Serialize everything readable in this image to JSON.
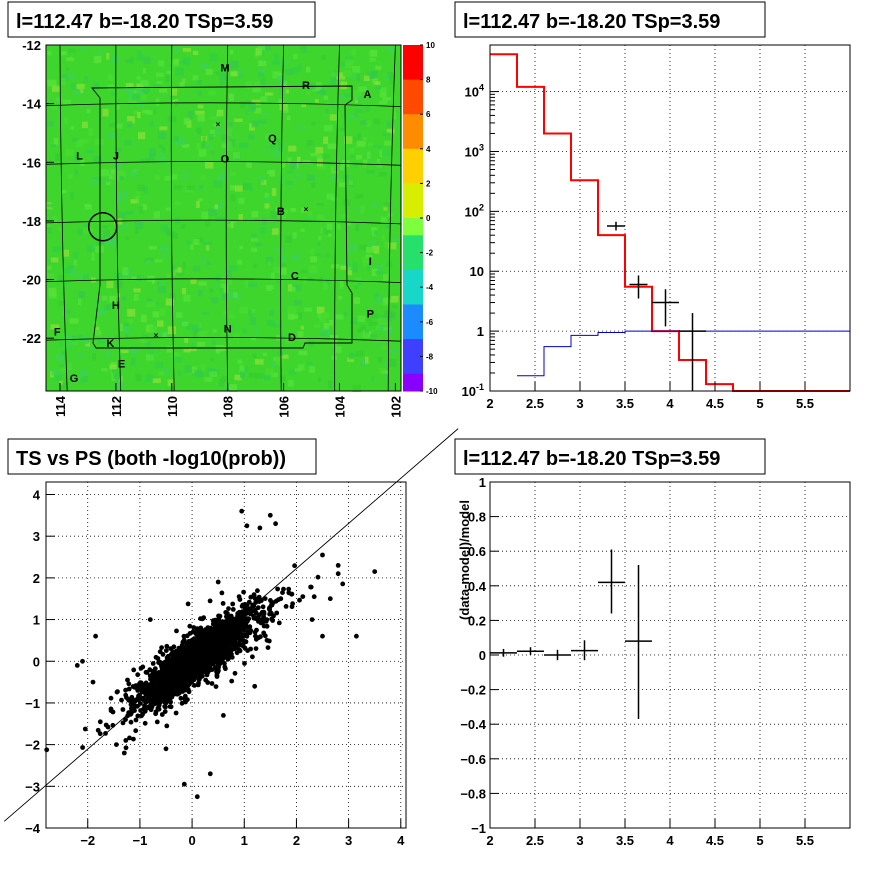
{
  "chart_data": [
    {
      "id": "skymap",
      "type": "heatmap",
      "title": "l=112.47 b=-18.20 TSp=3.59",
      "xlim": [
        114.5,
        101.8
      ],
      "ylim": [
        -23.8,
        -12
      ],
      "x_ticks": [
        114,
        112,
        110,
        108,
        106,
        104,
        102
      ],
      "y_ticks": [
        -12,
        -14,
        -16,
        -18,
        -20,
        -22
      ],
      "colorbar": {
        "min": -10,
        "max": 10,
        "ticks": [
          10,
          8,
          6,
          4,
          2,
          0,
          -2,
          -4,
          -6,
          -8,
          -10
        ]
      },
      "field_color": "#3ed62c",
      "source_circle": {
        "l": 112.47,
        "b": -18.2
      },
      "labels": [
        {
          "text": "M",
          "l": 108.1,
          "b": -12.9
        },
        {
          "text": "R",
          "l": 105.2,
          "b": -13.5
        },
        {
          "text": "A",
          "l": 103.0,
          "b": -13.8
        },
        {
          "text": "Q",
          "l": 106.4,
          "b": -15.3
        },
        {
          "text": "L",
          "l": 113.3,
          "b": -15.9
        },
        {
          "text": "J",
          "l": 112.0,
          "b": -15.9
        },
        {
          "text": "O",
          "l": 108.1,
          "b": -16.0
        },
        {
          "text": "B",
          "l": 106.1,
          "b": -17.8
        },
        {
          "text": "I",
          "l": 102.9,
          "b": -19.5
        },
        {
          "text": "C",
          "l": 105.6,
          "b": -20.0
        },
        {
          "text": "H",
          "l": 112.0,
          "b": -21.0
        },
        {
          "text": "P",
          "l": 102.9,
          "b": -21.3
        },
        {
          "text": "N",
          "l": 108.0,
          "b": -21.8
        },
        {
          "text": "F",
          "l": 114.1,
          "b": -21.9
        },
        {
          "text": "D",
          "l": 105.7,
          "b": -22.1
        },
        {
          "text": "K",
          "l": 112.2,
          "b": -22.3
        },
        {
          "text": "E",
          "l": 111.8,
          "b": -23.0
        },
        {
          "text": "G",
          "l": 113.5,
          "b": -23.5
        }
      ]
    },
    {
      "id": "spectrum",
      "type": "line",
      "title": "l=112.47 b=-18.20 TSp=3.59",
      "xlim": [
        2,
        6
      ],
      "ylim": [
        0.1,
        60000
      ],
      "yscale": "log",
      "x_ticks": [
        2,
        2.5,
        3,
        3.5,
        4,
        4.5,
        5,
        5.5
      ],
      "y_ticks": [
        0.1,
        1,
        10,
        100,
        1000,
        10000
      ],
      "y_tick_labels": [
        "10^-1",
        "1",
        "10",
        "10^2",
        "10^3",
        "10^4"
      ],
      "series": [
        {
          "color": "#ff0000",
          "edges": [
            2,
            2.3,
            2.6,
            2.9,
            3.2,
            3.5,
            3.8,
            4.1,
            4.4,
            4.7,
            6
          ],
          "values": [
            42000,
            12000,
            2000,
            330,
            40,
            5.5,
            1,
            0.33,
            0.13,
            0.1
          ]
        },
        {
          "color": "#0000cc",
          "edges": [
            2.3,
            2.6,
            2.9,
            3.2,
            3.5,
            3.8,
            4.1,
            6
          ],
          "values": [
            0.18,
            0.55,
            0.85,
            0.95,
            1,
            1,
            1
          ]
        }
      ],
      "points": [
        {
          "x": 3.4,
          "y": 57,
          "xerr": 0.1,
          "ylo": 48,
          "yhi": 67
        },
        {
          "x": 3.65,
          "y": 6,
          "xerr": 0.1,
          "ylo": 3.5,
          "yhi": 8.5
        },
        {
          "x": 3.95,
          "y": 3,
          "xerr": 0.15,
          "ylo": 1.2,
          "yhi": 5
        },
        {
          "x": 4.25,
          "y": 1,
          "xerr": 0.15,
          "ylo": 0.1,
          "yhi": 2
        }
      ]
    },
    {
      "id": "ts_vs_ps",
      "type": "scatter",
      "title": "TS vs PS (both -log10(prob))",
      "xlim": [
        -2.8,
        4.1
      ],
      "ylim": [
        -4,
        4.3
      ],
      "x_ticks": [
        -2,
        -1,
        0,
        1,
        2,
        3,
        4
      ],
      "y_ticks": [
        -4,
        -3,
        -2,
        -1,
        0,
        1,
        2,
        3,
        4
      ],
      "diagonal": "y=x",
      "points": [
        [
          -2.1,
          0
        ],
        [
          -2.2,
          -0.1
        ],
        [
          -1.85,
          0.6
        ],
        [
          -1.9,
          -0.5
        ],
        [
          -1.45,
          -2.0
        ],
        [
          -1.3,
          -2.2
        ],
        [
          3.5,
          2.15
        ],
        [
          3.15,
          0.6
        ],
        [
          2.8,
          2.1
        ],
        [
          2.8,
          2.3
        ],
        [
          2.5,
          0.6
        ],
        [
          2.3,
          1.0
        ],
        [
          2.5,
          2.55
        ],
        [
          1.5,
          3.5
        ],
        [
          0.95,
          3.6
        ],
        [
          1.3,
          3.2
        ],
        [
          1.6,
          3.3
        ],
        [
          1.05,
          3.25
        ],
        [
          2.65,
          1.5
        ],
        [
          0.1,
          -3.25
        ],
        [
          -0.15,
          -2.95
        ],
        [
          0.35,
          -2.7
        ],
        [
          -0.5,
          -2.1
        ],
        [
          0.6,
          -1.3
        ],
        [
          0.5,
          1.9
        ],
        [
          1.7,
          1.5
        ],
        [
          -0.8,
          1.0
        ],
        [
          1.2,
          -0.6
        ]
      ],
      "cloud": {
        "center": [
          0.05,
          0.05
        ],
        "n": 3200
      }
    },
    {
      "id": "residuals",
      "type": "scatter",
      "title": "l=112.47 b=-18.20 TSp=3.59",
      "ylabel": "(data-model)/model",
      "xlim": [
        2,
        6
      ],
      "ylim": [
        -1,
        1
      ],
      "x_ticks": [
        2,
        2.5,
        3,
        3.5,
        4,
        4.5,
        5,
        5.5
      ],
      "y_ticks": [
        -1,
        -0.8,
        -0.6,
        -0.4,
        -0.2,
        0,
        0.2,
        0.4,
        0.6,
        0.8,
        1
      ],
      "points": [
        {
          "x": 2.15,
          "y": 0.012,
          "xerr": 0.15,
          "ylo": -0.01,
          "yhi": 0.035
        },
        {
          "x": 2.45,
          "y": 0.022,
          "xerr": 0.15,
          "ylo": 0.0,
          "yhi": 0.045
        },
        {
          "x": 2.75,
          "y": 0.0,
          "xerr": 0.15,
          "ylo": -0.03,
          "yhi": 0.03
        },
        {
          "x": 3.05,
          "y": 0.025,
          "xerr": 0.15,
          "ylo": -0.03,
          "yhi": 0.085
        },
        {
          "x": 3.35,
          "y": 0.42,
          "xerr": 0.15,
          "ylo": 0.24,
          "yhi": 0.61
        },
        {
          "x": 3.65,
          "y": 0.08,
          "xerr": 0.15,
          "ylo": -0.37,
          "yhi": 0.52
        }
      ]
    }
  ]
}
